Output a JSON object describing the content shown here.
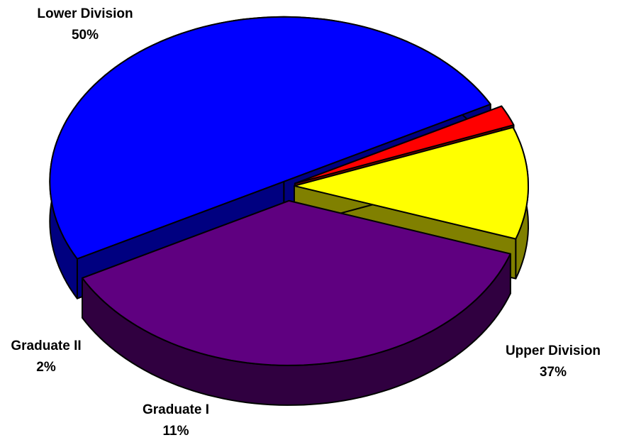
{
  "chart_data": {
    "type": "pie",
    "categories": [
      "Lower Division",
      "Upper Division",
      "Graduate I",
      "Graduate II"
    ],
    "values": [
      50,
      37,
      11,
      2
    ],
    "value_labels": [
      "50%",
      "37%",
      "11%",
      "2%"
    ],
    "colors": [
      "#0000ff",
      "#5f0080",
      "#ffff00",
      "#ff0000"
    ]
  }
}
